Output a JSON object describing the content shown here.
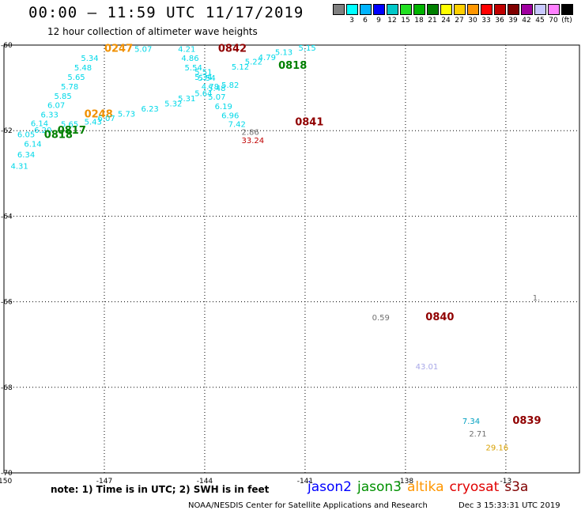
{
  "header": {
    "title": "00:00 – 11:59 UTC 11/17/2019",
    "subtitle": "12 hour collection of altimeter wave heights"
  },
  "scale": {
    "swatches": [
      {
        "color": "#808080",
        "label": ""
      },
      {
        "color": "#00ffff",
        "label": "3"
      },
      {
        "color": "#00b4ff",
        "label": "6"
      },
      {
        "color": "#0000ff",
        "label": "9"
      },
      {
        "color": "#00c8c8",
        "label": "12"
      },
      {
        "color": "#22e022",
        "label": "15"
      },
      {
        "color": "#00b400",
        "label": "18"
      },
      {
        "color": "#008000",
        "label": "21"
      },
      {
        "color": "#ffff00",
        "label": "24"
      },
      {
        "color": "#ffd000",
        "label": "27"
      },
      {
        "color": "#ff9600",
        "label": "30"
      },
      {
        "color": "#ff0000",
        "label": "33"
      },
      {
        "color": "#c00000",
        "label": "36"
      },
      {
        "color": "#800000",
        "label": "39"
      },
      {
        "color": "#a000a0",
        "label": "42"
      },
      {
        "color": "#c8c8ff",
        "label": "45"
      },
      {
        "color": "#ff80ff",
        "label": "70"
      },
      {
        "color": "#000000",
        "label": "(ft)"
      }
    ]
  },
  "map": {
    "lon_ticks": [
      "-150",
      "-147",
      "-144",
      "-141",
      "-138",
      "-13"
    ],
    "lat_ticks": [
      "-60",
      "-62",
      "-64",
      "-66",
      "-68",
      "-70"
    ],
    "colors": {
      "cyan": "#00d8e8",
      "orange": "#f09000",
      "darkred": "#900000",
      "green": "#008000",
      "gray": "#707070",
      "lavender": "#a8a8e8",
      "gold": "#d8a000",
      "red": "#c00000",
      "teal": "#00a0c0"
    },
    "labels": [
      {
        "t": "5.07",
        "x": -146.1,
        "y": -60.08,
        "c": "cyan"
      },
      {
        "t": "0247",
        "x": -147.0,
        "y": -60.08,
        "c": "orange",
        "time": true
      },
      {
        "t": "5.34",
        "x": -147.7,
        "y": -60.3,
        "c": "cyan"
      },
      {
        "t": "5.48",
        "x": -147.9,
        "y": -60.52,
        "c": "cyan"
      },
      {
        "t": "5.65",
        "x": -148.1,
        "y": -60.74,
        "c": "cyan"
      },
      {
        "t": "5.78",
        "x": -148.3,
        "y": -60.96,
        "c": "cyan"
      },
      {
        "t": "5.85",
        "x": -148.5,
        "y": -61.18,
        "c": "cyan"
      },
      {
        "t": "6.07",
        "x": -148.7,
        "y": -61.4,
        "c": "cyan"
      },
      {
        "t": "6.33",
        "x": -148.9,
        "y": -61.62,
        "c": "cyan"
      },
      {
        "t": "0248",
        "x": -147.6,
        "y": -61.62,
        "c": "orange",
        "time": true
      },
      {
        "t": "6.14",
        "x": -149.2,
        "y": -61.82,
        "c": "cyan"
      },
      {
        "t": "5.65",
        "x": -148.3,
        "y": -61.84,
        "c": "cyan"
      },
      {
        "t": "6.20",
        "x": -149.1,
        "y": -61.98,
        "c": "cyan"
      },
      {
        "t": "0817",
        "x": -148.4,
        "y": -62.0,
        "c": "green",
        "time": true
      },
      {
        "t": "6.05",
        "x": -149.6,
        "y": -62.08,
        "c": "cyan"
      },
      {
        "t": "0818",
        "x": -148.8,
        "y": -62.1,
        "c": "green",
        "time": true
      },
      {
        "t": "6.14",
        "x": -149.4,
        "y": -62.3,
        "c": "cyan"
      },
      {
        "t": "6.34",
        "x": -149.6,
        "y": -62.55,
        "c": "cyan"
      },
      {
        "t": "4.31",
        "x": -149.8,
        "y": -62.82,
        "c": "cyan"
      },
      {
        "t": "5.43",
        "x": -147.6,
        "y": -61.78,
        "c": "cyan"
      },
      {
        "t": "6.07",
        "x": -147.2,
        "y": -61.7,
        "c": "cyan"
      },
      {
        "t": "5.73",
        "x": -146.6,
        "y": -61.6,
        "c": "cyan"
      },
      {
        "t": "6.23",
        "x": -145.9,
        "y": -61.48,
        "c": "cyan"
      },
      {
        "t": "5.32",
        "x": -145.2,
        "y": -61.36,
        "c": "cyan"
      },
      {
        "t": "5.31",
        "x": -144.8,
        "y": -61.24,
        "c": "cyan"
      },
      {
        "t": "5.64",
        "x": -144.3,
        "y": -61.12,
        "c": "cyan"
      },
      {
        "t": "5.48",
        "x": -143.9,
        "y": -61.0,
        "c": "cyan"
      },
      {
        "t": "5.82",
        "x": -143.5,
        "y": -60.92,
        "c": "cyan"
      },
      {
        "t": "4.21",
        "x": -144.8,
        "y": -60.08,
        "c": "cyan"
      },
      {
        "t": "0842",
        "x": -143.6,
        "y": -60.08,
        "c": "darkred",
        "time": true
      },
      {
        "t": "4.86",
        "x": -144.7,
        "y": -60.3,
        "c": "cyan"
      },
      {
        "t": "5.54",
        "x": -144.6,
        "y": -60.52,
        "c": "cyan"
      },
      {
        "t": "5.51",
        "x": -144.3,
        "y": -60.62,
        "c": "cyan"
      },
      {
        "t": "5.34",
        "x": -144.3,
        "y": -60.74,
        "c": "cyan"
      },
      {
        "t": "5.54",
        "x": -144.2,
        "y": -60.76,
        "c": "cyan"
      },
      {
        "t": "4.78",
        "x": -144.1,
        "y": -60.96,
        "c": "cyan"
      },
      {
        "t": "5.07",
        "x": -143.9,
        "y": -61.2,
        "c": "cyan"
      },
      {
        "t": "6.19",
        "x": -143.7,
        "y": -61.42,
        "c": "cyan"
      },
      {
        "t": "6.96",
        "x": -143.5,
        "y": -61.64,
        "c": "cyan"
      },
      {
        "t": "7.42",
        "x": -143.3,
        "y": -61.84,
        "c": "cyan"
      },
      {
        "t": "5.12",
        "x": -143.2,
        "y": -60.5,
        "c": "cyan"
      },
      {
        "t": "5.22",
        "x": -142.8,
        "y": -60.38,
        "c": "cyan"
      },
      {
        "t": "4.79",
        "x": -142.4,
        "y": -60.28,
        "c": "cyan"
      },
      {
        "t": "5.13",
        "x": -141.9,
        "y": -60.16,
        "c": "cyan"
      },
      {
        "t": "5.15",
        "x": -141.2,
        "y": -60.06,
        "c": "cyan"
      },
      {
        "t": "0818",
        "x": -141.8,
        "y": -60.48,
        "c": "green",
        "time": true
      },
      {
        "t": "0841",
        "x": -141.3,
        "y": -61.8,
        "c": "darkred",
        "time": true
      },
      {
        "t": "2.86",
        "x": -142.9,
        "y": -62.02,
        "c": "gray"
      },
      {
        "t": "33.24",
        "x": -142.9,
        "y": -62.22,
        "c": "red"
      },
      {
        "t": "0.59",
        "x": -139.0,
        "y": -66.36,
        "c": "gray"
      },
      {
        "t": "0840",
        "x": -137.4,
        "y": -66.36,
        "c": "darkred",
        "time": true
      },
      {
        "t": "43.01",
        "x": -137.7,
        "y": -67.5,
        "c": "lavender"
      },
      {
        "t": "7.34",
        "x": -136.3,
        "y": -68.78,
        "c": "teal"
      },
      {
        "t": "0839",
        "x": -134.8,
        "y": -68.78,
        "c": "darkred",
        "time": true
      },
      {
        "t": "2.71",
        "x": -136.1,
        "y": -69.08,
        "c": "gray"
      },
      {
        "t": "29.16",
        "x": -135.6,
        "y": -69.4,
        "c": "gold"
      },
      {
        "t": "1.",
        "x": -134.2,
        "y": -65.9,
        "c": "gray"
      }
    ]
  },
  "footer": {
    "note": "note: 1) Time is in UTC; 2) SWH is in feet",
    "legend": [
      {
        "name": "jason2",
        "color": "#0000ff"
      },
      {
        "name": "jason3",
        "color": "#009000"
      },
      {
        "name": "altika",
        "color": "#ff9600"
      },
      {
        "name": "cryosat",
        "color": "#e00000"
      },
      {
        "name": "s3a",
        "color": "#800000"
      }
    ],
    "credit": "NOAA/NESDIS Center for Satellite Applications and Research",
    "stamp": "Dec  3 15:33:31 UTC 2019"
  }
}
